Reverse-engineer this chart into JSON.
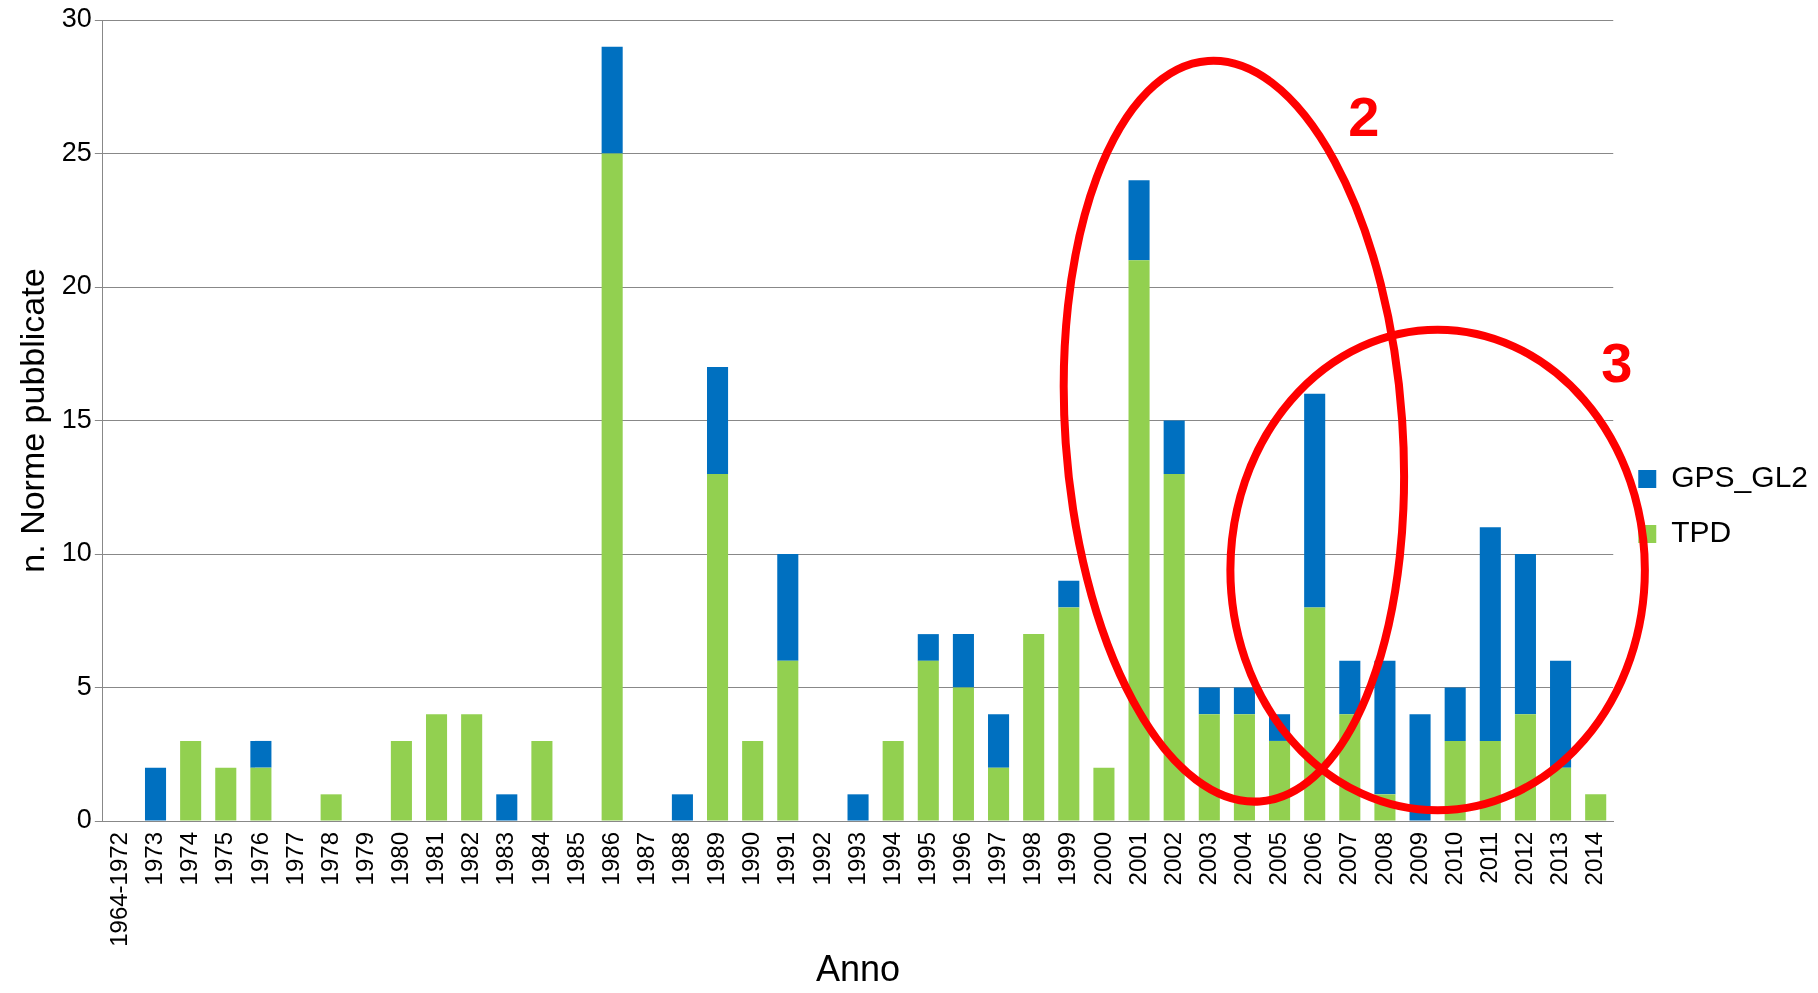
{
  "chart_data": {
    "type": "bar",
    "stacked": true,
    "xlabel": "Anno",
    "ylabel": "n. Norme pubblicate",
    "categories": [
      "1964-1972",
      "1973",
      "1974",
      "1975",
      "1976",
      "1977",
      "1978",
      "1979",
      "1980",
      "1981",
      "1982",
      "1983",
      "1984",
      "1985",
      "1986",
      "1987",
      "1988",
      "1989",
      "1990",
      "1991",
      "1992",
      "1993",
      "1994",
      "1995",
      "1996",
      "1997",
      "1998",
      "1999",
      "2000",
      "2001",
      "2002",
      "2003",
      "2004",
      "2005",
      "2006",
      "2007",
      "2008",
      "2009",
      "2010",
      "2011",
      "2012",
      "2013",
      "2014"
    ],
    "series": [
      {
        "name": "TPD",
        "color": "#92d050",
        "values": [
          0,
          0,
          3,
          2,
          2,
          0,
          1,
          0,
          3,
          4,
          4,
          0,
          3,
          0,
          25,
          0,
          0,
          13,
          3,
          6,
          0,
          0,
          3,
          6,
          5,
          2,
          7,
          8,
          2,
          21,
          13,
          4,
          4,
          3,
          8,
          4,
          1,
          0,
          3,
          3,
          4,
          2,
          1
        ]
      },
      {
        "name": "GPS_GL2",
        "color": "#0070c0",
        "values": [
          0,
          2,
          0,
          0,
          1,
          0,
          0,
          0,
          0,
          0,
          0,
          1,
          0,
          0,
          4,
          0,
          1,
          4,
          0,
          4,
          0,
          1,
          0,
          1,
          2,
          2,
          0,
          1,
          0,
          3,
          2,
          1,
          1,
          1,
          8,
          2,
          5,
          4,
          2,
          8,
          6,
          4,
          0
        ]
      }
    ],
    "ylim": [
      0,
      30
    ],
    "yticks": [
      0,
      5,
      10,
      15,
      20,
      25,
      30
    ],
    "grid": "y",
    "legend": "right",
    "annotations": [
      "2",
      "3"
    ]
  }
}
